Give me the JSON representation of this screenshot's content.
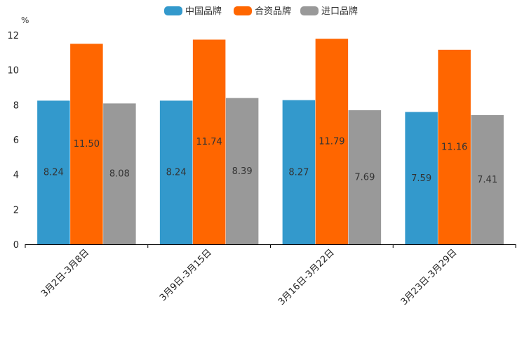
{
  "chart_data": {
    "type": "bar",
    "title": "",
    "xlabel": "",
    "ylabel": "%",
    "ylim": [
      0,
      12
    ],
    "yticks": [
      0,
      2,
      4,
      6,
      8,
      10,
      12
    ],
    "categories": [
      "3月2日-3月8日",
      "3月9日-3月15日",
      "3月16日-3月22日",
      "3月23日-3月29日"
    ],
    "series": [
      {
        "name": "中国品牌",
        "color": "#3399CC",
        "values": [
          8.24,
          8.24,
          8.27,
          7.59
        ]
      },
      {
        "name": "合资品牌",
        "color": "#FF6600",
        "values": [
          11.5,
          11.74,
          11.79,
          11.16
        ]
      },
      {
        "name": "进口品牌",
        "color": "#999999",
        "values": [
          8.08,
          8.39,
          7.69,
          7.41
        ]
      }
    ],
    "data_labels": [
      [
        "8.24",
        "8.24",
        "8.27",
        "7.59"
      ],
      [
        "11.50",
        "11.74",
        "11.79",
        "11.16"
      ],
      [
        "8.08",
        "8.39",
        "7.69",
        "7.41"
      ]
    ],
    "legend_position": "top-center",
    "grid": false
  }
}
